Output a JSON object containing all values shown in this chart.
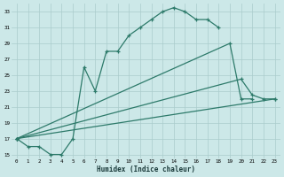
{
  "xlabel": "Humidex (Indice chaleur)",
  "bg_color": "#cce8e8",
  "grid_color": "#aacccc",
  "line_color": "#2d7a6a",
  "xlim": [
    -0.5,
    23.5
  ],
  "ylim": [
    14.5,
    34.0
  ],
  "yticks": [
    15,
    17,
    19,
    21,
    23,
    25,
    27,
    29,
    31,
    33
  ],
  "xticks": [
    0,
    1,
    2,
    3,
    4,
    5,
    6,
    7,
    8,
    9,
    10,
    11,
    12,
    13,
    14,
    15,
    16,
    17,
    18,
    19,
    20,
    21,
    22,
    23
  ],
  "s0x": [
    0,
    1,
    2,
    3,
    4,
    5,
    6,
    7,
    8,
    9,
    10,
    11,
    12,
    13,
    14,
    15,
    16,
    17,
    18
  ],
  "s0y": [
    17,
    16,
    16,
    15,
    15,
    17,
    26,
    23,
    28,
    28,
    30,
    31,
    32,
    33,
    33.5,
    33,
    32,
    32,
    31
  ],
  "s1x": [
    0,
    19,
    20,
    21
  ],
  "s1y": [
    17,
    29,
    22,
    22
  ],
  "s2x": [
    0,
    20,
    21,
    22,
    23
  ],
  "s2y": [
    17,
    24.5,
    22.5,
    22,
    22
  ],
  "s3x": [
    0,
    23
  ],
  "s3y": [
    17,
    22
  ]
}
